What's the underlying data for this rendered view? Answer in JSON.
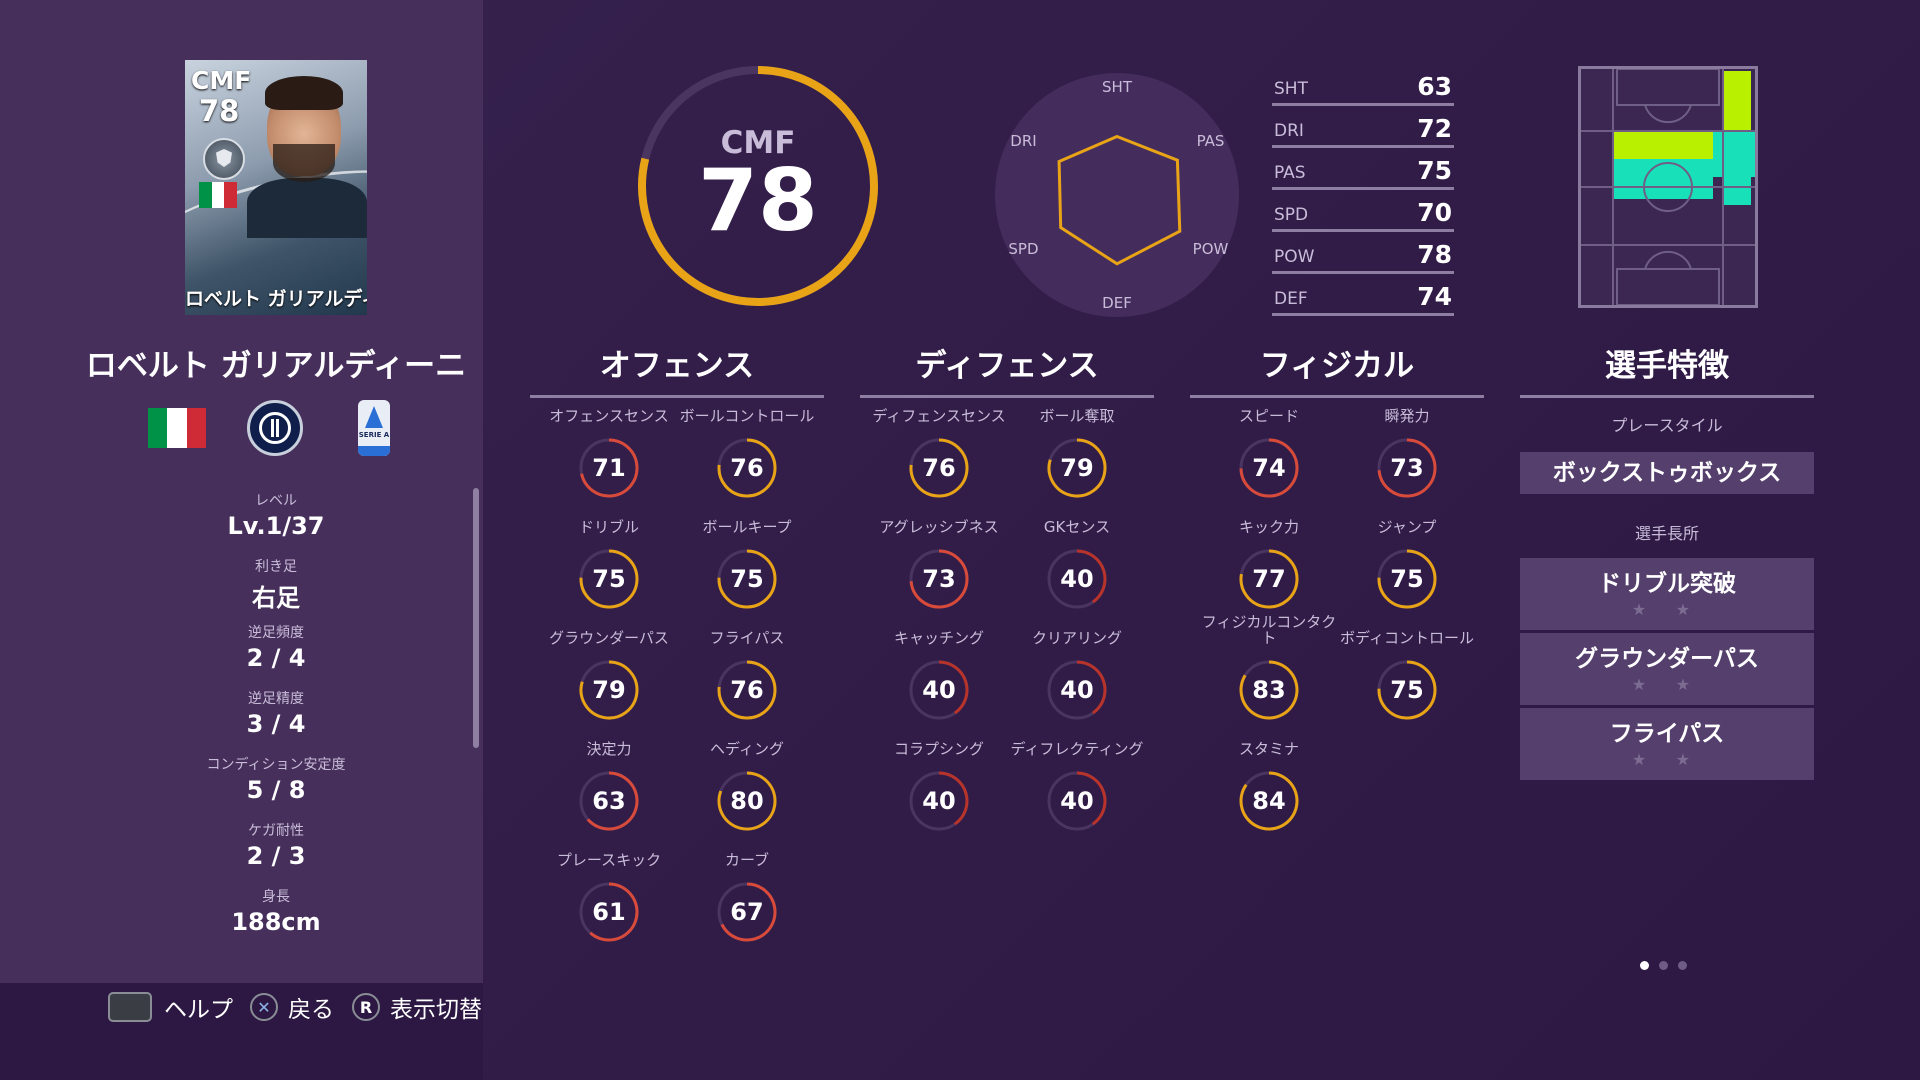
{
  "card": {
    "position": "CMF",
    "overall": "78",
    "name": "ロベルト ガリアルディーニ"
  },
  "player": {
    "name": "ロベルト ガリアルディーニ"
  },
  "flag_colors": [
    "#009246",
    "#ffffff",
    "#ce2b37"
  ],
  "profile": [
    {
      "label": "レベル",
      "value": "Lv.1/37"
    },
    {
      "label": "利き足",
      "value": "右足"
    },
    {
      "label": "逆足頻度",
      "value": "2 / 4"
    },
    {
      "label": "逆足精度",
      "value": "3 / 4"
    },
    {
      "label": "コンディション安定度",
      "value": "5 / 8"
    },
    {
      "label": "ケガ耐性",
      "value": "2 / 3"
    },
    {
      "label": "身長",
      "value": "188cm"
    }
  ],
  "league_logo_text": "SERIE A",
  "buttons": {
    "help": "ヘルプ",
    "back": "戻る",
    "back_icon": "✕",
    "toggle": "表示切替",
    "toggle_icon": "R"
  },
  "gauge": {
    "position": "CMF",
    "value": 78,
    "max": 99,
    "color": "#e8a317"
  },
  "radar": {
    "axes": [
      "SHT",
      "PAS",
      "POW",
      "DEF",
      "SPD",
      "DRI"
    ],
    "values": [
      63,
      75,
      78,
      74,
      70,
      72
    ],
    "max": 99,
    "color": "#e8a317"
  },
  "stats": [
    {
      "key": "SHT",
      "value": "63"
    },
    {
      "key": "DRI",
      "value": "72"
    },
    {
      "key": "PAS",
      "value": "75"
    },
    {
      "key": "SPD",
      "value": "70"
    },
    {
      "key": "POW",
      "value": "78"
    },
    {
      "key": "DEF",
      "value": "74"
    }
  ],
  "sections": {
    "offense": {
      "title": "オフェンス",
      "attrs": [
        {
          "label": "オフェンスセンス",
          "value": 71
        },
        {
          "label": "ボールコントロール",
          "value": 76
        },
        {
          "label": "ドリブル",
          "value": 75
        },
        {
          "label": "ボールキープ",
          "value": 75
        },
        {
          "label": "グラウンダーパス",
          "value": 79
        },
        {
          "label": "フライパス",
          "value": 76
        },
        {
          "label": "決定力",
          "value": 63
        },
        {
          "label": "ヘディング",
          "value": 80
        },
        {
          "label": "プレースキック",
          "value": 61
        },
        {
          "label": "カーブ",
          "value": 67
        }
      ]
    },
    "defense": {
      "title": "ディフェンス",
      "attrs": [
        {
          "label": "ディフェンスセンス",
          "value": 76
        },
        {
          "label": "ボール奪取",
          "value": 79
        },
        {
          "label": "アグレッシブネス",
          "value": 73
        },
        {
          "label": "GKセンス",
          "value": 40
        },
        {
          "label": "キャッチング",
          "value": 40
        },
        {
          "label": "クリアリング",
          "value": 40
        },
        {
          "label": "コラプシング",
          "value": 40
        },
        {
          "label": "ディフレクティング",
          "value": 40
        }
      ]
    },
    "physical": {
      "title": "フィジカル",
      "attrs": [
        {
          "label": "スピード",
          "value": 74
        },
        {
          "label": "瞬発力",
          "value": 73
        },
        {
          "label": "キック力",
          "value": 77
        },
        {
          "label": "ジャンプ",
          "value": 75
        },
        {
          "label": "フィジカルコンタクト",
          "value": 83
        },
        {
          "label": "ボディコントロール",
          "value": 75
        },
        {
          "label": "スタミナ",
          "value": 84
        }
      ]
    }
  },
  "dial_colors": {
    "high": "#e8a317",
    "mid": "#d84a3a",
    "low": "#b8332a",
    "track": "#4a3560"
  },
  "traits": {
    "title": "選手特徴",
    "playstyle_label": "プレースタイル",
    "playstyle": "ボックストゥボックス",
    "skills_label": "選手長所",
    "skills": [
      {
        "name": "ドリブル突破",
        "stars": "★ ★"
      },
      {
        "name": "グラウンダーパス",
        "stars": "★ ★"
      },
      {
        "name": "フライパス",
        "stars": "★ ★"
      }
    ]
  },
  "pitch_colors": {
    "yellow": "#b8f000",
    "cyan": "#18e0b8"
  },
  "pager": {
    "count": 3,
    "active": 0
  }
}
